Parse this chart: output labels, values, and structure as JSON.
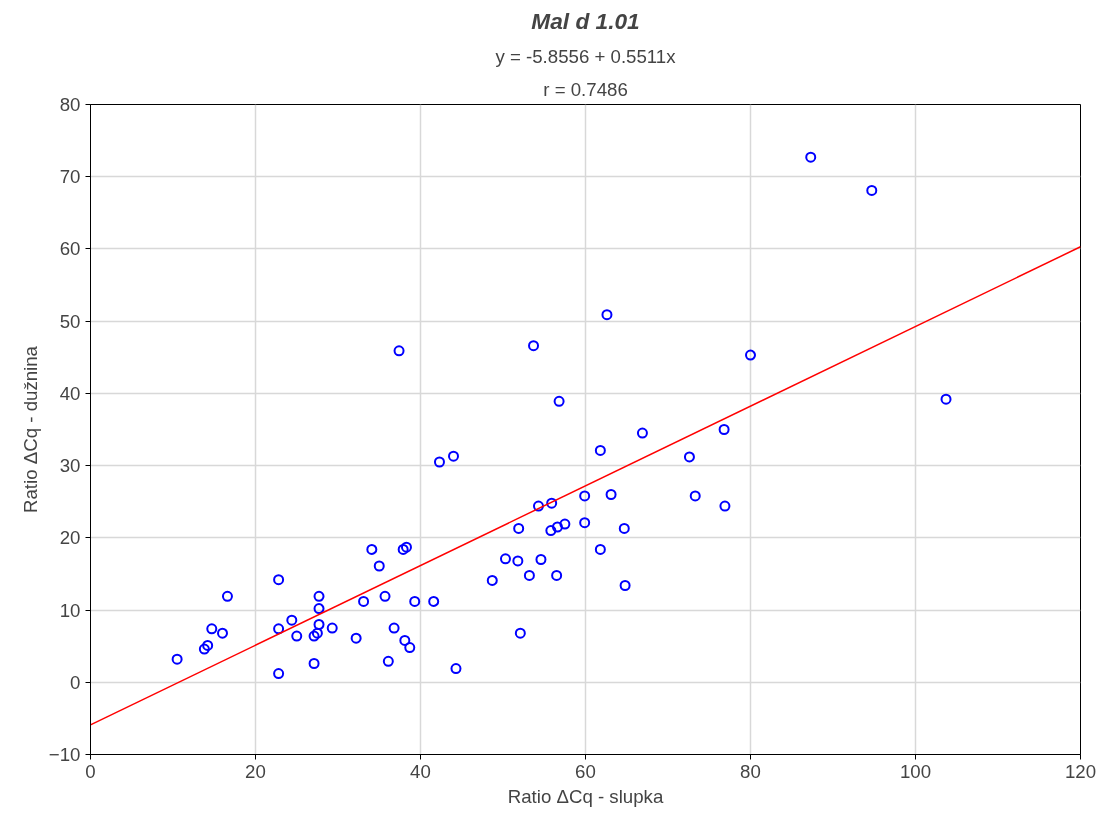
{
  "chart_data": {
    "type": "scatter",
    "title": "Mal d 1.01",
    "subtitle": "y = -5.8556 + 0.5511x",
    "annotations": [
      "r = 0.7486"
    ],
    "xlabel": "Ratio ΔCq - slupka",
    "ylabel": "Ratio ΔCq - dužnina",
    "xlim": [
      0,
      120
    ],
    "xticks": [
      0,
      20,
      40,
      60,
      80,
      100,
      120
    ],
    "ylim": [
      -10,
      80
    ],
    "yticks": [
      -10,
      0,
      10,
      20,
      30,
      40,
      50,
      60,
      70,
      80
    ],
    "grid": true,
    "series": [
      {
        "color": "#0000ff",
        "marker": "circle",
        "x": [
          10.5,
          13.8,
          14.2,
          14.7,
          16.0,
          16.6,
          22.8,
          22.8,
          22.8,
          24.4,
          25.0,
          27.1,
          27.5,
          27.1,
          27.7,
          27.7,
          27.7,
          29.3,
          32.2,
          33.1,
          34.1,
          35.0,
          35.7,
          36.1,
          36.8,
          37.4,
          37.9,
          38.3,
          38.1,
          38.7,
          39.3,
          41.6,
          42.3,
          44.0,
          44.3,
          48.7,
          50.3,
          51.8,
          51.9,
          52.1,
          53.2,
          53.7,
          54.3,
          54.6,
          55.8,
          55.9,
          56.6,
          57.5,
          56.5,
          56.8,
          59.9,
          59.9,
          61.8,
          61.8,
          62.6,
          63.1,
          64.7,
          64.8,
          66.9,
          72.6,
          73.3,
          76.8,
          76.9,
          80.0,
          87.3,
          94.7,
          103.7
        ],
        "values": [
          3.2,
          4.6,
          5.1,
          7.4,
          6.8,
          11.9,
          14.2,
          7.4,
          1.2,
          8.6,
          6.4,
          6.4,
          6.8,
          2.6,
          11.9,
          10.2,
          8.0,
          7.5,
          6.1,
          11.2,
          18.4,
          16.1,
          11.9,
          2.9,
          7.5,
          45.9,
          18.4,
          18.7,
          5.8,
          4.8,
          11.2,
          11.2,
          30.5,
          31.3,
          1.9,
          14.1,
          17.1,
          16.8,
          21.3,
          6.8,
          14.8,
          46.6,
          24.4,
          17.0,
          21.0,
          24.8,
          21.5,
          21.9,
          14.8,
          38.9,
          25.8,
          22.1,
          18.4,
          32.1,
          50.9,
          26.0,
          21.3,
          13.4,
          34.5,
          31.2,
          25.8,
          35.0,
          24.4,
          45.3,
          72.7,
          68.1,
          39.2
        ]
      },
      {
        "type": "line",
        "color": "#ff0000",
        "line_style": "solid",
        "x": [
          0,
          120
        ],
        "values": [
          -5.9,
          60.3
        ]
      }
    ]
  }
}
